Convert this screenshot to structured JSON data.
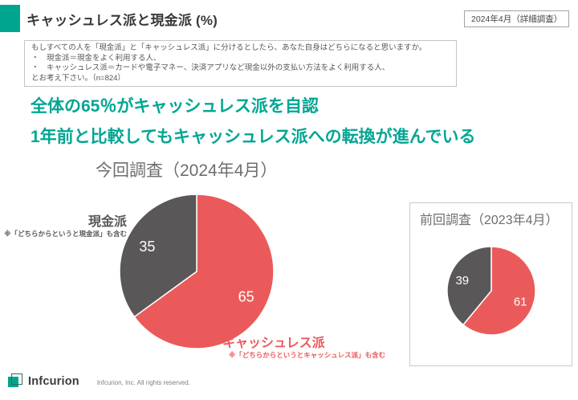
{
  "accent_color": "#00A58E",
  "header": {
    "title": "キャッシュレス派と現金派 (%)",
    "badge": "2024年4月（詳細調査）"
  },
  "question_box": {
    "lines": [
      "もしすべての人を「現金派」と「キャッシュレス派」に分けるとしたら、あなた自身はどちらになると思いますか。",
      "・　現金派＝現金をよく利用する人、",
      "・　キャッシュレス派＝カードや電子マネー、決済アプリなど現金以外の支払い方法をよく利用する人、",
      "とお考え下さい。（n=824）"
    ]
  },
  "headline": {
    "line1": "全体の65％がキャッシュレス派を自認",
    "line2": "1年前と比較してもキャッシュレス派への転換が進んでいる",
    "color": "#00A693"
  },
  "chart_data": [
    {
      "type": "pie",
      "title": "今回調査（2024年4月）",
      "start_angle": "top",
      "direction": "clockwise",
      "slices": [
        {
          "label": "キャッシュレス派",
          "value": 65,
          "color": "#EB5A5A",
          "note": "※「どちらからというとキャッシュレス派」も含む"
        },
        {
          "label": "現金派",
          "value": 35,
          "color": "#595757",
          "note": "※「どちらからというと現金派」も含む"
        }
      ]
    },
    {
      "type": "pie",
      "title": "前回調査（2023年4月）",
      "start_angle": "top",
      "direction": "clockwise",
      "slices": [
        {
          "label": "キャッシュレス派",
          "value": 61,
          "color": "#EB5A5A"
        },
        {
          "label": "現金派",
          "value": 39,
          "color": "#595757"
        }
      ]
    }
  ],
  "footer": {
    "logo_text": "Infcurion",
    "copyright": "Infcurion, Inc.  All rights reserved."
  }
}
